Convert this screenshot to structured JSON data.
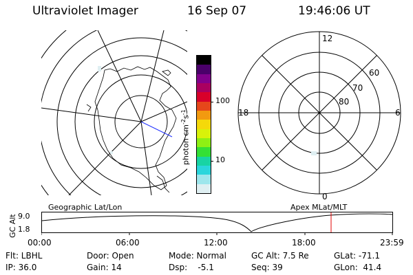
{
  "header": {
    "instrument": "Ultraviolet Imager",
    "date": "16 Sep 07",
    "time": "19:46:06 UT"
  },
  "left_map": {
    "label": "Geographic Lat/Lon"
  },
  "right_map": {
    "label": "Apex MLat/MLT",
    "mlt_labels": {
      "top": "12",
      "left": "18",
      "right": "6",
      "bottom": "0"
    },
    "lat_labels": [
      "60",
      "70",
      "80"
    ]
  },
  "colorbar": {
    "unit_main": "photon cm",
    "unit_sup1": "-2",
    "unit_mid": "s",
    "unit_sup2": "-1",
    "tick_100": "100",
    "tick_10": "10",
    "colors": [
      "#000000",
      "#4a006a",
      "#82008c",
      "#aa0060",
      "#d8002a",
      "#e6471b",
      "#f29a10",
      "#f5d90a",
      "#d8f20a",
      "#8ef014",
      "#34e036",
      "#18d4a4",
      "#2ad6dc",
      "#9ee6ec",
      "#dfeff2"
    ]
  },
  "timeline": {
    "y_axis_label": "GC Alt",
    "y_ticks": [
      "9.0",
      "1.8"
    ],
    "x_ticks": [
      "00:00",
      "06:00",
      "12:00",
      "18:00",
      "23:59"
    ],
    "marker_color": "#e00000"
  },
  "info": {
    "row1": {
      "flt": "Flt: LBHL",
      "door": "Door: Open",
      "mode": "Mode: Normal",
      "gcalt": "GC Alt: 7.5 Re",
      "glat": "GLat: -71.1"
    },
    "row2": {
      "ip": "IP: 36.0",
      "gain": "Gain: 14",
      "dsp": "Dsp:    -5.1",
      "seq": "Seq: 39",
      "glon": "GLon:  41.4"
    }
  }
}
